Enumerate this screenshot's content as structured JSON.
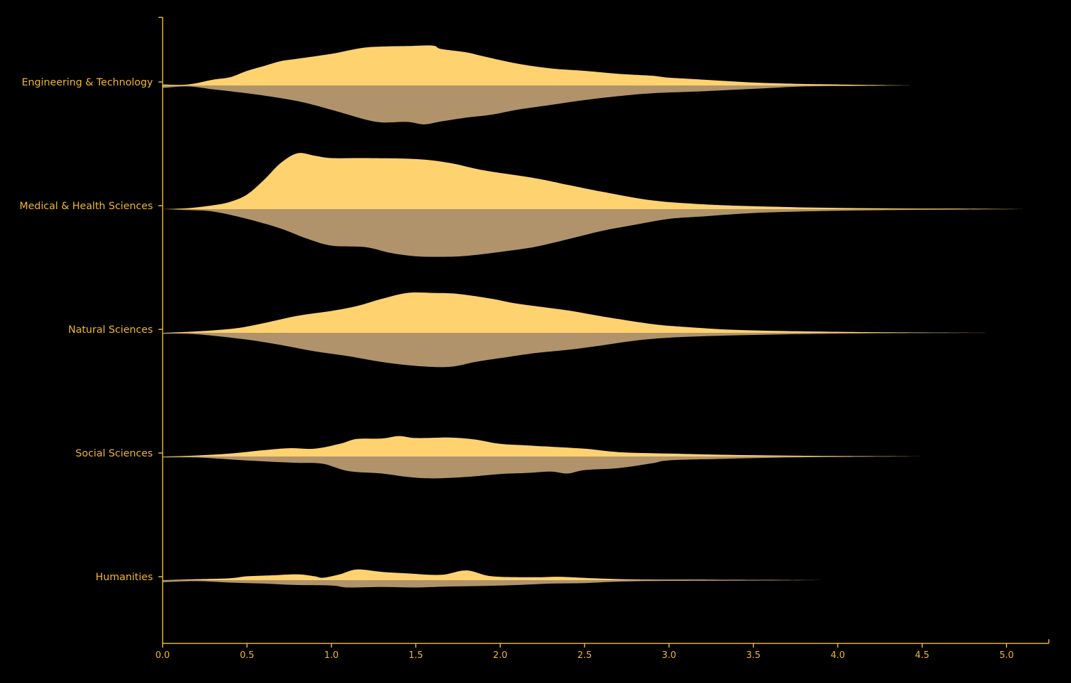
{
  "colors": {
    "background": "#000000",
    "axis": "#e8b437",
    "label": "#f1b92b",
    "upper_fill": "#ffd270",
    "lower_fill": "#b0936a"
  },
  "chart_data": {
    "type": "area",
    "subtype": "split-violin-ridgeline",
    "title": "",
    "xlabel": "",
    "ylabel": "",
    "xlim": [
      0,
      5.25
    ],
    "x_ticks": [
      "0.0",
      "0.5",
      "1.0",
      "1.5",
      "2.0",
      "2.5",
      "3.0",
      "3.5",
      "4.0",
      "4.5",
      "5.0"
    ],
    "x_tick_values": [
      0,
      0.5,
      1.0,
      1.5,
      2.0,
      2.5,
      3.0,
      3.5,
      4.0,
      4.5,
      5.0
    ],
    "grid": false,
    "legend": "none",
    "categories": [
      {
        "label": "Engineering & Technology",
        "upper": [
          [
            0,
            0.02
          ],
          [
            0.15,
            0.02
          ],
          [
            0.3,
            0.12
          ],
          [
            0.4,
            0.17
          ],
          [
            0.5,
            0.3
          ],
          [
            0.6,
            0.4
          ],
          [
            0.7,
            0.5
          ],
          [
            0.8,
            0.55
          ],
          [
            1.0,
            0.65
          ],
          [
            1.1,
            0.72
          ],
          [
            1.2,
            0.78
          ],
          [
            1.3,
            0.8
          ],
          [
            1.45,
            0.81
          ],
          [
            1.6,
            0.82
          ],
          [
            1.65,
            0.75
          ],
          [
            1.8,
            0.68
          ],
          [
            1.9,
            0.6
          ],
          [
            2.1,
            0.45
          ],
          [
            2.3,
            0.35
          ],
          [
            2.5,
            0.3
          ],
          [
            2.7,
            0.24
          ],
          [
            2.9,
            0.2
          ],
          [
            3.0,
            0.16
          ],
          [
            3.2,
            0.12
          ],
          [
            3.5,
            0.06
          ],
          [
            3.8,
            0.03
          ],
          [
            4.0,
            0.02
          ],
          [
            4.2,
            0.01
          ],
          [
            4.45,
            0
          ]
        ],
        "lower": [
          [
            0,
            0.05
          ],
          [
            0.15,
            0.02
          ],
          [
            0.3,
            0.08
          ],
          [
            0.5,
            0.16
          ],
          [
            0.7,
            0.26
          ],
          [
            0.85,
            0.36
          ],
          [
            1.0,
            0.5
          ],
          [
            1.1,
            0.6
          ],
          [
            1.2,
            0.7
          ],
          [
            1.3,
            0.76
          ],
          [
            1.45,
            0.75
          ],
          [
            1.55,
            0.8
          ],
          [
            1.65,
            0.74
          ],
          [
            1.8,
            0.66
          ],
          [
            1.95,
            0.6
          ],
          [
            2.1,
            0.5
          ],
          [
            2.3,
            0.4
          ],
          [
            2.5,
            0.3
          ],
          [
            2.7,
            0.22
          ],
          [
            2.9,
            0.16
          ],
          [
            3.2,
            0.12
          ],
          [
            3.5,
            0.07
          ],
          [
            3.8,
            0.02
          ],
          [
            4.1,
            0.01
          ],
          [
            4.45,
            0
          ]
        ]
      },
      {
        "label": "Medical & Health Sciences",
        "upper": [
          [
            0,
            0
          ],
          [
            0.15,
            0.02
          ],
          [
            0.3,
            0.08
          ],
          [
            0.4,
            0.15
          ],
          [
            0.5,
            0.3
          ],
          [
            0.6,
            0.6
          ],
          [
            0.7,
            0.95
          ],
          [
            0.8,
            1.15
          ],
          [
            0.9,
            1.1
          ],
          [
            1.0,
            1.05
          ],
          [
            1.2,
            1.05
          ],
          [
            1.5,
            1.03
          ],
          [
            1.7,
            0.95
          ],
          [
            1.9,
            0.8
          ],
          [
            2.2,
            0.64
          ],
          [
            2.4,
            0.5
          ],
          [
            2.6,
            0.36
          ],
          [
            2.9,
            0.18
          ],
          [
            3.2,
            0.1
          ],
          [
            3.5,
            0.06
          ],
          [
            3.9,
            0.03
          ],
          [
            4.3,
            0.015
          ],
          [
            4.7,
            0.01
          ],
          [
            5.1,
            0
          ]
        ],
        "lower": [
          [
            0,
            0
          ],
          [
            0.15,
            0.02
          ],
          [
            0.3,
            0.05
          ],
          [
            0.5,
            0.2
          ],
          [
            0.7,
            0.4
          ],
          [
            0.85,
            0.6
          ],
          [
            1.0,
            0.75
          ],
          [
            1.2,
            0.78
          ],
          [
            1.35,
            0.9
          ],
          [
            1.5,
            0.97
          ],
          [
            1.65,
            0.98
          ],
          [
            1.8,
            0.96
          ],
          [
            2.0,
            0.88
          ],
          [
            2.2,
            0.78
          ],
          [
            2.4,
            0.62
          ],
          [
            2.6,
            0.45
          ],
          [
            2.8,
            0.32
          ],
          [
            3.0,
            0.2
          ],
          [
            3.2,
            0.15
          ],
          [
            3.5,
            0.08
          ],
          [
            3.9,
            0.04
          ],
          [
            4.3,
            0.02
          ],
          [
            4.7,
            0.01
          ],
          [
            5.1,
            0
          ]
        ]
      },
      {
        "label": "Natural Sciences",
        "upper": [
          [
            0,
            0
          ],
          [
            0.15,
            0.02
          ],
          [
            0.3,
            0.05
          ],
          [
            0.45,
            0.1
          ],
          [
            0.6,
            0.2
          ],
          [
            0.8,
            0.35
          ],
          [
            1.0,
            0.45
          ],
          [
            1.15,
            0.55
          ],
          [
            1.3,
            0.7
          ],
          [
            1.45,
            0.82
          ],
          [
            1.6,
            0.82
          ],
          [
            1.75,
            0.8
          ],
          [
            1.95,
            0.7
          ],
          [
            2.1,
            0.6
          ],
          [
            2.4,
            0.46
          ],
          [
            2.6,
            0.34
          ],
          [
            2.9,
            0.18
          ],
          [
            3.1,
            0.12
          ],
          [
            3.4,
            0.06
          ],
          [
            3.8,
            0.03
          ],
          [
            4.3,
            0.01
          ],
          [
            4.95,
            0
          ]
        ],
        "lower": [
          [
            0,
            0.02
          ],
          [
            0.15,
            0.02
          ],
          [
            0.3,
            0.06
          ],
          [
            0.5,
            0.14
          ],
          [
            0.7,
            0.25
          ],
          [
            0.9,
            0.38
          ],
          [
            1.1,
            0.48
          ],
          [
            1.3,
            0.6
          ],
          [
            1.5,
            0.68
          ],
          [
            1.7,
            0.7
          ],
          [
            1.85,
            0.6
          ],
          [
            2.0,
            0.52
          ],
          [
            2.2,
            0.42
          ],
          [
            2.4,
            0.35
          ],
          [
            2.6,
            0.26
          ],
          [
            2.8,
            0.16
          ],
          [
            3.0,
            0.1
          ],
          [
            3.3,
            0.06
          ],
          [
            3.7,
            0.03
          ],
          [
            4.2,
            0.01
          ],
          [
            4.95,
            0
          ]
        ]
      },
      {
        "label": "Social Sciences",
        "upper": [
          [
            0,
            0
          ],
          [
            0.2,
            0.02
          ],
          [
            0.4,
            0.06
          ],
          [
            0.6,
            0.13
          ],
          [
            0.75,
            0.17
          ],
          [
            0.9,
            0.16
          ],
          [
            1.05,
            0.26
          ],
          [
            1.15,
            0.36
          ],
          [
            1.3,
            0.37
          ],
          [
            1.4,
            0.42
          ],
          [
            1.5,
            0.38
          ],
          [
            1.7,
            0.39
          ],
          [
            1.85,
            0.35
          ],
          [
            2.0,
            0.26
          ],
          [
            2.2,
            0.22
          ],
          [
            2.5,
            0.16
          ],
          [
            2.7,
            0.09
          ],
          [
            3.0,
            0.06
          ],
          [
            3.4,
            0.03
          ],
          [
            3.8,
            0.015
          ],
          [
            4.3,
            0.005
          ],
          [
            4.5,
            0
          ]
        ],
        "lower": [
          [
            0,
            0.02
          ],
          [
            0.2,
            0.02
          ],
          [
            0.4,
            0.06
          ],
          [
            0.6,
            0.1
          ],
          [
            0.8,
            0.13
          ],
          [
            0.95,
            0.15
          ],
          [
            1.1,
            0.3
          ],
          [
            1.3,
            0.35
          ],
          [
            1.45,
            0.42
          ],
          [
            1.6,
            0.45
          ],
          [
            1.8,
            0.42
          ],
          [
            2.0,
            0.36
          ],
          [
            2.15,
            0.34
          ],
          [
            2.3,
            0.31
          ],
          [
            2.4,
            0.35
          ],
          [
            2.5,
            0.28
          ],
          [
            2.7,
            0.24
          ],
          [
            2.9,
            0.14
          ],
          [
            3.0,
            0.08
          ],
          [
            3.3,
            0.05
          ],
          [
            3.7,
            0.02
          ],
          [
            4.2,
            0.005
          ],
          [
            4.5,
            0
          ]
        ]
      },
      {
        "label": "Humanities",
        "upper": [
          [
            0,
            0
          ],
          [
            0.2,
            0.02
          ],
          [
            0.4,
            0.04
          ],
          [
            0.5,
            0.08
          ],
          [
            0.65,
            0.1
          ],
          [
            0.8,
            0.12
          ],
          [
            0.9,
            0.08
          ],
          [
            0.95,
            0.05
          ],
          [
            1.05,
            0.12
          ],
          [
            1.15,
            0.22
          ],
          [
            1.3,
            0.17
          ],
          [
            1.45,
            0.14
          ],
          [
            1.65,
            0.11
          ],
          [
            1.8,
            0.2
          ],
          [
            1.95,
            0.08
          ],
          [
            2.2,
            0.06
          ],
          [
            2.35,
            0.07
          ],
          [
            2.55,
            0.04
          ],
          [
            2.8,
            0.015
          ],
          [
            3.2,
            0.01
          ],
          [
            3.6,
            0.005
          ],
          [
            3.9,
            0
          ]
        ],
        "lower": [
          [
            0,
            0.04
          ],
          [
            0.2,
            0.02
          ],
          [
            0.4,
            0.05
          ],
          [
            0.6,
            0.07
          ],
          [
            0.8,
            0.1
          ],
          [
            1.0,
            0.11
          ],
          [
            1.1,
            0.15
          ],
          [
            1.3,
            0.14
          ],
          [
            1.5,
            0.15
          ],
          [
            1.7,
            0.13
          ],
          [
            1.9,
            0.12
          ],
          [
            2.1,
            0.1
          ],
          [
            2.3,
            0.07
          ],
          [
            2.5,
            0.06
          ],
          [
            2.7,
            0.03
          ],
          [
            3.0,
            0.015
          ],
          [
            3.4,
            0.01
          ],
          [
            3.9,
            0
          ]
        ]
      }
    ]
  }
}
